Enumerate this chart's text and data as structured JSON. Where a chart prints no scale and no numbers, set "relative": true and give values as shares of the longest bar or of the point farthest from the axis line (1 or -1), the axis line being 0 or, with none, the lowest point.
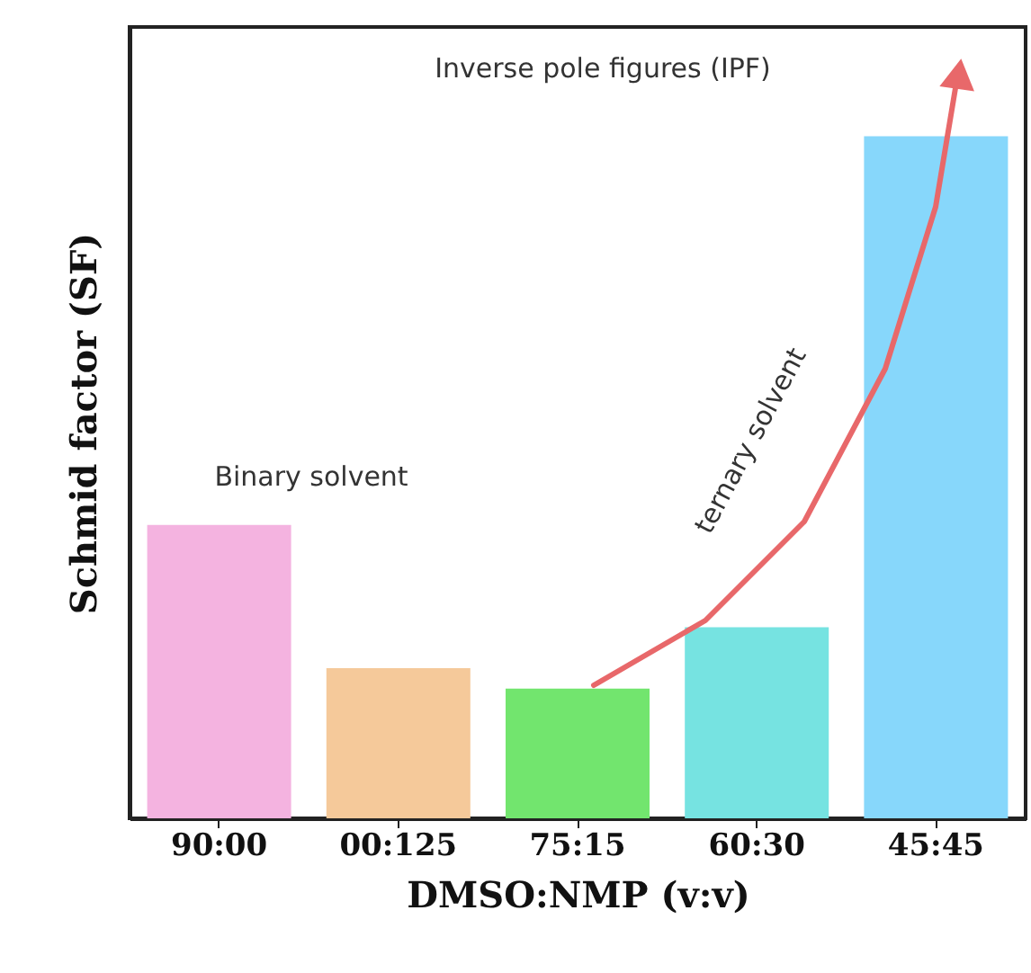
{
  "chart_data": {
    "type": "bar",
    "relative": true,
    "xlabel": "DMSO:NMP (v:v)",
    "ylabel": "Schmid factor (SF)",
    "categories": [
      "90:00",
      "00:125",
      "75:15",
      "60:30",
      "45:45"
    ],
    "values": [
      0.43,
      0.22,
      0.19,
      0.28,
      1.0
    ],
    "colors": [
      "#f4b3e0",
      "#f5c99a",
      "#72e56e",
      "#76e3e1",
      "#87d7fb"
    ],
    "annotations": [
      "Inverse pole figures (IPF)",
      "Binary solvent",
      "ternary solvent"
    ],
    "grid": false
  }
}
